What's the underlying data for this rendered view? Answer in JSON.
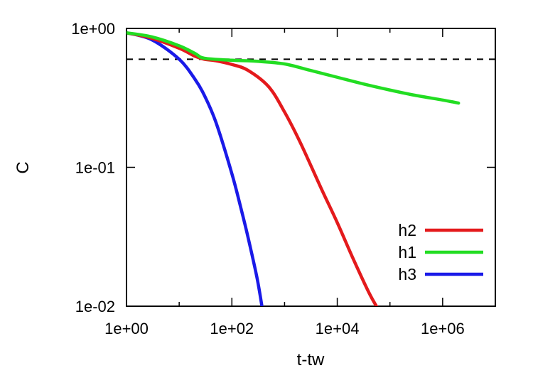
{
  "chart_data": {
    "type": "line",
    "xlabel": "t-tw",
    "ylabel": "C",
    "xscale": "log",
    "yscale": "log",
    "xlim": [
      1,
      10000000
    ],
    "ylim": [
      0.01,
      1
    ],
    "grid": false,
    "legend_position": "bottom-right",
    "x_ticks": [
      {
        "value": 1,
        "label": "1e+00"
      },
      {
        "value": 100,
        "label": "1e+02"
      },
      {
        "value": 10000,
        "label": "1e+04"
      },
      {
        "value": 1000000,
        "label": "1e+06"
      }
    ],
    "y_ticks": [
      {
        "value": 1,
        "label": "1e+00"
      },
      {
        "value": 0.1,
        "label": "1e-01"
      },
      {
        "value": 0.01,
        "label": "1e-02"
      }
    ],
    "reference_line": {
      "y": 0.6,
      "style": "dashed",
      "color": "#000000"
    },
    "series": [
      {
        "name": "h2",
        "color": "#e41a1c",
        "x": [
          1,
          3,
          10,
          20,
          30,
          50,
          100,
          200,
          500,
          1000,
          2000,
          5000,
          10000,
          20000,
          40000,
          60000
        ],
        "y": [
          0.93,
          0.85,
          0.72,
          0.63,
          0.6,
          0.585,
          0.55,
          0.5,
          0.38,
          0.25,
          0.15,
          0.07,
          0.04,
          0.022,
          0.0125,
          0.0095
        ]
      },
      {
        "name": "h1",
        "color": "#22dd22",
        "x": [
          1,
          3,
          10,
          20,
          30,
          100,
          300,
          1000,
          3000,
          10000,
          30000,
          100000,
          300000,
          1000000,
          2000000
        ],
        "y": [
          0.93,
          0.87,
          0.75,
          0.66,
          0.61,
          0.59,
          0.58,
          0.555,
          0.5,
          0.445,
          0.4,
          0.36,
          0.33,
          0.305,
          0.29
        ]
      },
      {
        "name": "h3",
        "color": "#1a1ae8",
        "x": [
          1,
          3,
          10,
          20,
          30,
          50,
          100,
          150,
          200,
          300,
          380
        ],
        "y": [
          0.93,
          0.83,
          0.6,
          0.43,
          0.33,
          0.21,
          0.09,
          0.05,
          0.032,
          0.016,
          0.0095
        ]
      }
    ]
  }
}
